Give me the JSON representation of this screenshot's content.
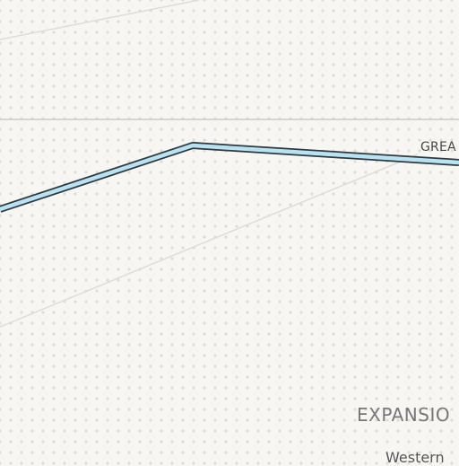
{
  "map": {
    "labels": {
      "road": "GREA",
      "region": "EXPANSIO",
      "sub_region": "Western"
    },
    "colors": {
      "background": "#f7f6f2",
      "dot": "#dcdbd2",
      "road_fill": "#b9e3f2",
      "road_casing": "#2f3a40",
      "thin_line": "#dcdcdc",
      "boundary": "#c9c9c9"
    }
  }
}
